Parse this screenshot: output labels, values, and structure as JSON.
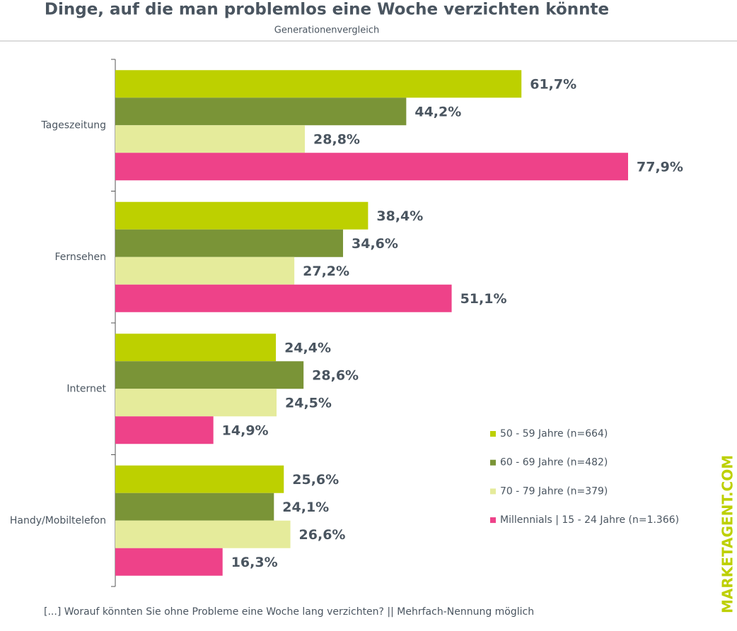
{
  "chart_data": {
    "type": "bar",
    "orientation": "horizontal",
    "title": "Dinge, auf die man problemlos eine Woche verzichten könnte",
    "subtitle": "Generationenvergleich",
    "footnote": "[...] Worauf könnten Sie ohne Probleme eine Woche lang verzichten? || Mehrfach-Nennung möglich",
    "watermark": "MARKETAGENT.COM",
    "categories": [
      "Tageszeitung",
      "Fernsehen",
      "Internet",
      "Handy/Mobiltelefon"
    ],
    "series": [
      {
        "name": "50 - 59 Jahre (n=664)",
        "color": "#bdd000",
        "values": [
          61.7,
          38.4,
          24.4,
          25.6
        ],
        "value_labels": [
          "61,7%",
          "38,4%",
          "24,4%",
          "25,6%"
        ]
      },
      {
        "name": "60 - 69 Jahre (n=482)",
        "color": "#7a9437",
        "values": [
          44.2,
          34.6,
          28.6,
          24.1
        ],
        "value_labels": [
          "44,2%",
          "34,6%",
          "28,6%",
          "24,1%"
        ]
      },
      {
        "name": "70 - 79 Jahre (n=379)",
        "color": "#e5eb9b",
        "values": [
          28.8,
          27.2,
          24.5,
          26.6
        ],
        "value_labels": [
          "28,8%",
          "27,2%",
          "24,5%",
          "26,6%"
        ]
      },
      {
        "name": "Millennials | 15 - 24 Jahre (n=1.366)",
        "color": "#ee4289",
        "values": [
          77.9,
          51.1,
          14.9,
          16.3
        ],
        "value_labels": [
          "77,9%",
          "51,1%",
          "14,9%",
          "16,3%"
        ]
      }
    ]
  }
}
